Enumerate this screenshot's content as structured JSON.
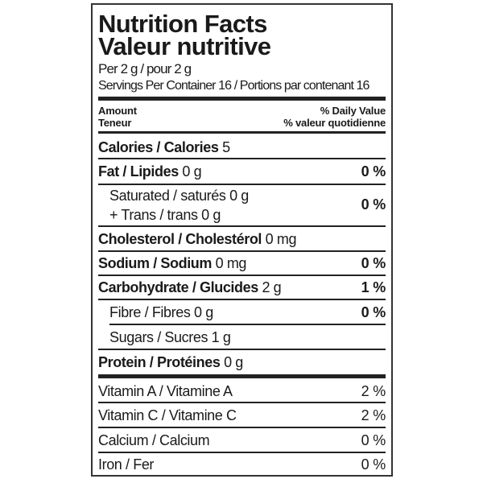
{
  "header": {
    "title_en": "Nutrition Facts",
    "title_fr": "Valeur nutritive",
    "serving": "Per 2 g / pour 2 g",
    "servings_per_container": "Servings Per Container 16 / Portions par contenant 16"
  },
  "columns": {
    "amount_en": "Amount",
    "amount_fr": "Teneur",
    "dv_en": "% Daily Value",
    "dv_fr": "% valeur quotidienne"
  },
  "calories": {
    "label": "Calories / Calories",
    "value": "5"
  },
  "nutrients": [
    {
      "label": "Fat / Lipides",
      "amount": "0 g",
      "dv": "0 %"
    },
    {
      "label": "Saturated / saturés 0 g",
      "label2": "+ Trans / trans 0 g",
      "dv": "0 %"
    },
    {
      "label": "Cholesterol / Cholestérol",
      "amount": "0 mg"
    },
    {
      "label": "Sodium / Sodium",
      "amount": "0 mg",
      "dv": "0 %"
    },
    {
      "label": "Carbohydrate / Glucides",
      "amount": "2 g",
      "dv": "1 %"
    },
    {
      "label": "Fibre / Fibres 0 g",
      "dv": "0 %"
    },
    {
      "label": "Sugars / Sucres 1 g"
    },
    {
      "label": "Protein / Protéines",
      "amount": "0 g"
    }
  ],
  "vitamins": [
    {
      "label": "Vitamin A / Vitamine A",
      "dv": "2 %"
    },
    {
      "label": "Vitamin C / Vitamine C",
      "dv": "2 %"
    },
    {
      "label": "Calcium / Calcium",
      "dv": "0 %"
    },
    {
      "label": "Iron / Fer",
      "dv": "0 %"
    }
  ]
}
